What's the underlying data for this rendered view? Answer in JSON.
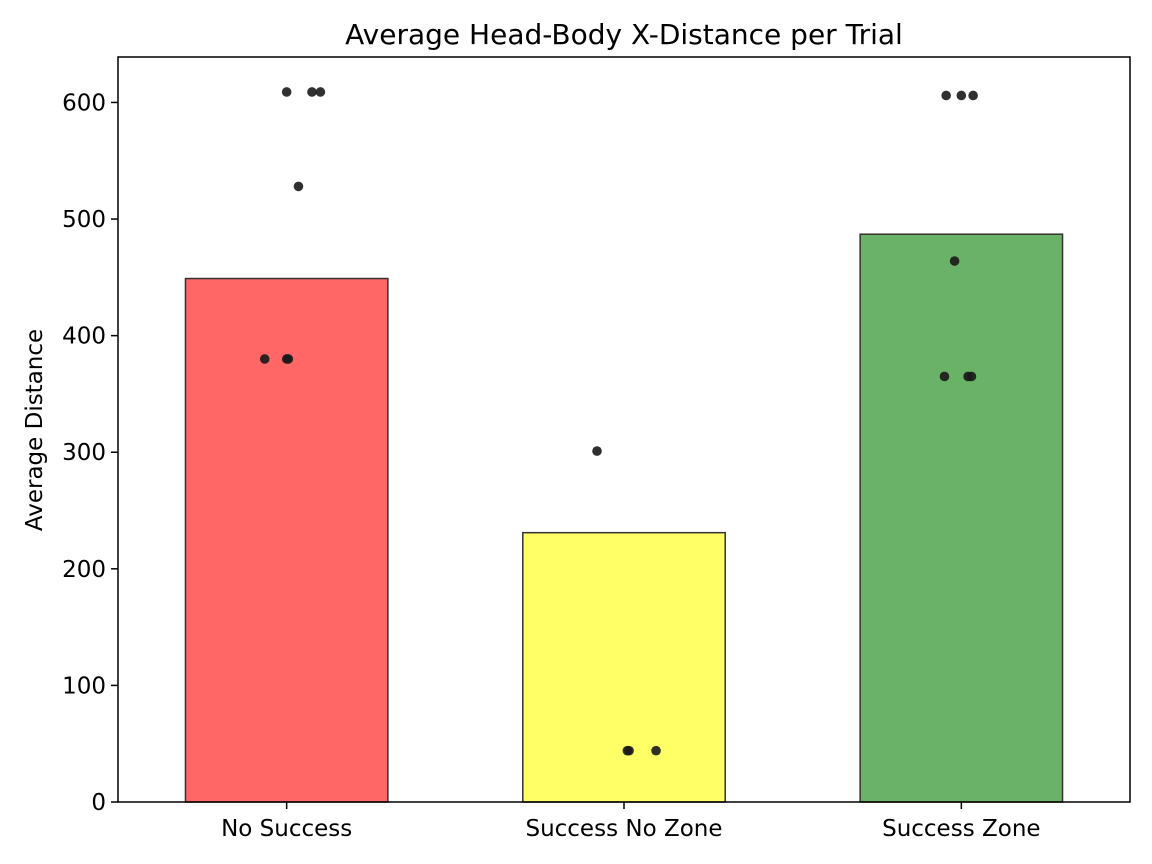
{
  "chart_data": {
    "type": "bar",
    "title": "Average Head-Body X-Distance per Trial",
    "xlabel": "",
    "ylabel": "Average Distance",
    "categories": [
      "No Success",
      "Success No Zone",
      "Success Zone"
    ],
    "values": [
      449,
      231,
      487
    ],
    "colors": [
      "#ff6666",
      "#ffff66",
      "#6ab267"
    ],
    "edge_color": "#333333",
    "point_color": "#1a1a1a",
    "points": [
      [
        {
          "x_offset": 0.0,
          "y": 609
        },
        {
          "x_offset": 0.075,
          "y": 609
        },
        {
          "x_offset": 0.1,
          "y": 609
        },
        {
          "x_offset": 0.035,
          "y": 528
        },
        {
          "x_offset": -0.065,
          "y": 380
        },
        {
          "x_offset": 0.0,
          "y": 380
        },
        {
          "x_offset": 0.005,
          "y": 380
        }
      ],
      [
        {
          "x_offset": -0.08,
          "y": 301
        },
        {
          "x_offset": 0.01,
          "y": 44
        },
        {
          "x_offset": 0.015,
          "y": 44
        },
        {
          "x_offset": 0.095,
          "y": 44
        }
      ],
      [
        {
          "x_offset": -0.045,
          "y": 606
        },
        {
          "x_offset": 0.0,
          "y": 606
        },
        {
          "x_offset": 0.035,
          "y": 606
        },
        {
          "x_offset": -0.02,
          "y": 464
        },
        {
          "x_offset": -0.05,
          "y": 365
        },
        {
          "x_offset": 0.02,
          "y": 365
        },
        {
          "x_offset": 0.03,
          "y": 365
        }
      ]
    ],
    "ylim": [
      0,
      639
    ],
    "yticks": [
      0,
      100,
      200,
      300,
      400,
      500,
      600
    ],
    "grid": false,
    "legend": "none"
  }
}
